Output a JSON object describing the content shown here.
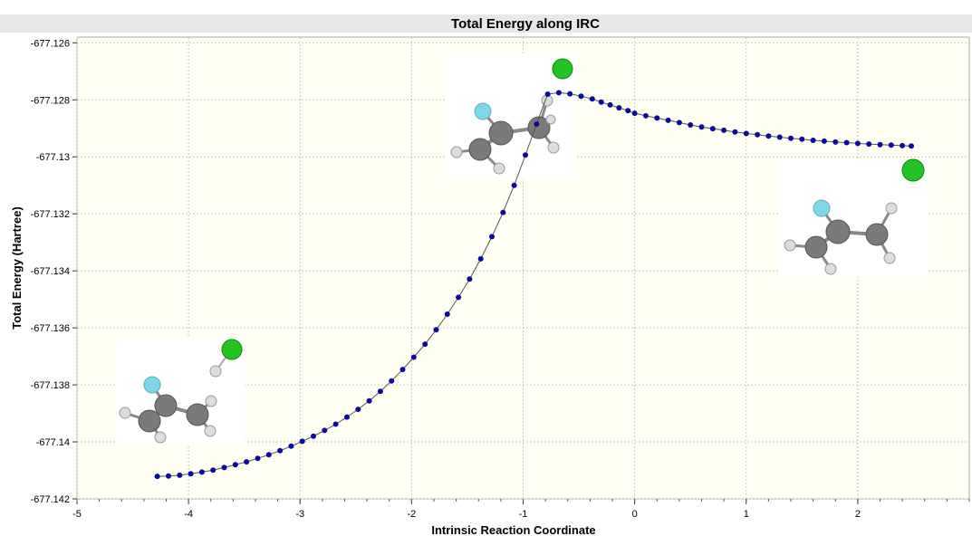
{
  "chart_data": {
    "type": "line",
    "title": "Total Energy along IRC",
    "xlabel": "Intrinsic Reaction Coordinate",
    "ylabel": "Total Energy (Hartree)",
    "xlim": [
      -5,
      3
    ],
    "ylim": [
      -677.142,
      -677.1258
    ],
    "x_ticks": [
      "-5",
      "-4",
      "-3",
      "-2",
      "-1",
      "0",
      "1",
      "2"
    ],
    "y_ticks": [
      "-677.126",
      "-677.128",
      "-677.13",
      "-677.132",
      "-677.134",
      "-677.136",
      "-677.138",
      "-677.14",
      "-677.142"
    ],
    "grid": true,
    "legend": "none",
    "series": [
      {
        "color": "#0a0a9c",
        "x": [
          -4.28,
          -4.18,
          -4.08,
          -3.98,
          -3.88,
          -3.78,
          -3.68,
          -3.58,
          -3.48,
          -3.38,
          -3.28,
          -3.18,
          -3.08,
          -2.98,
          -2.88,
          -2.78,
          -2.68,
          -2.58,
          -2.48,
          -2.38,
          -2.28,
          -2.18,
          -2.08,
          -1.98,
          -1.88,
          -1.78,
          -1.68,
          -1.58,
          -1.48,
          -1.38,
          -1.28,
          -1.18,
          -1.08,
          -0.98,
          -0.88,
          -0.78,
          -0.68,
          -0.58,
          -0.48,
          -0.38,
          -0.3,
          -0.22,
          -0.14,
          -0.06,
          0.0,
          0.1,
          0.2,
          0.3,
          0.4,
          0.5,
          0.6,
          0.7,
          0.8,
          0.9,
          1.0,
          1.1,
          1.2,
          1.3,
          1.4,
          1.5,
          1.6,
          1.7,
          1.8,
          1.9,
          2.0,
          2.1,
          2.2,
          2.3,
          2.4,
          2.48
        ],
        "y": [
          -677.14121,
          -677.1412,
          -677.14117,
          -677.14112,
          -677.14106,
          -677.14099,
          -677.1409,
          -677.1408,
          -677.1407,
          -677.14058,
          -677.14045,
          -677.14031,
          -677.14015,
          -677.13998,
          -677.1398,
          -677.1396,
          -677.13938,
          -677.13913,
          -677.13886,
          -677.13856,
          -677.13823,
          -677.13786,
          -677.13746,
          -677.13703,
          -677.13657,
          -677.13607,
          -677.13552,
          -677.13493,
          -677.13429,
          -677.13358,
          -677.1328,
          -677.13195,
          -677.131,
          -677.12994,
          -677.12885,
          -677.1278,
          -677.12775,
          -677.12779,
          -677.12787,
          -677.12797,
          -677.12808,
          -677.12818,
          -677.12828,
          -677.12838,
          -677.12847,
          -677.12856,
          -677.12864,
          -677.12872,
          -677.1288,
          -677.12888,
          -677.12895,
          -677.12901,
          -677.12907,
          -677.12913,
          -677.12918,
          -677.12922,
          -677.12927,
          -677.12931,
          -677.12935,
          -677.12938,
          -677.12942,
          -677.12945,
          -677.12948,
          -677.1295,
          -677.12953,
          -677.12955,
          -677.12957,
          -677.12959,
          -677.12961,
          -677.12962
        ]
      }
    ],
    "insets": [
      {
        "name": "reactant",
        "labels": [
          "F",
          "C",
          "C",
          "H",
          "H",
          "H",
          "H",
          "Cl"
        ]
      },
      {
        "name": "transition-state",
        "labels": [
          "F",
          "C",
          "C",
          "H",
          "H",
          "H",
          "H",
          "Cl"
        ]
      },
      {
        "name": "product",
        "labels": [
          "F",
          "C",
          "C",
          "H",
          "H",
          "H",
          "H",
          "Cl"
        ]
      }
    ]
  }
}
